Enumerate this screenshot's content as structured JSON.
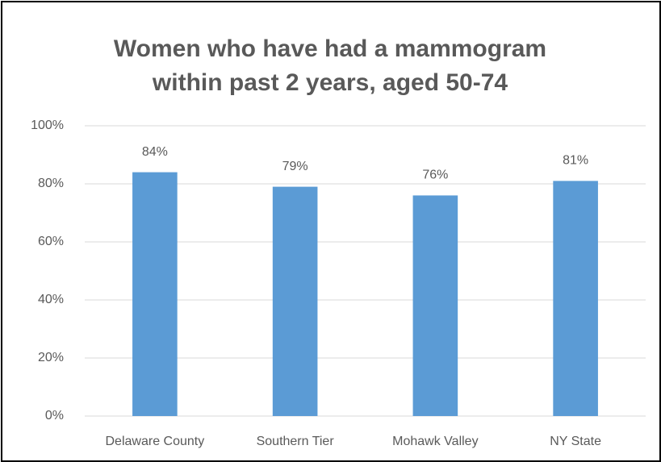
{
  "chart_data": {
    "type": "bar",
    "title": "Women who have had a mammogram within past 2 years, aged 50-74",
    "categories": [
      "Delaware County",
      "Southern Tier",
      "Mohawk Valley",
      "NY State"
    ],
    "values": [
      84,
      79,
      76,
      81
    ],
    "value_labels": [
      "84%",
      "79%",
      "76%",
      "81%"
    ],
    "color": "#5b9bd5",
    "ylim": [
      0,
      100
    ],
    "yticks": [
      {
        "value": 0,
        "label": "0%"
      },
      {
        "value": 20,
        "label": "20%"
      },
      {
        "value": 40,
        "label": "40%"
      },
      {
        "value": 60,
        "label": "60%"
      },
      {
        "value": 80,
        "label": "80%"
      },
      {
        "value": 100,
        "label": "100%"
      }
    ],
    "grid": true
  }
}
